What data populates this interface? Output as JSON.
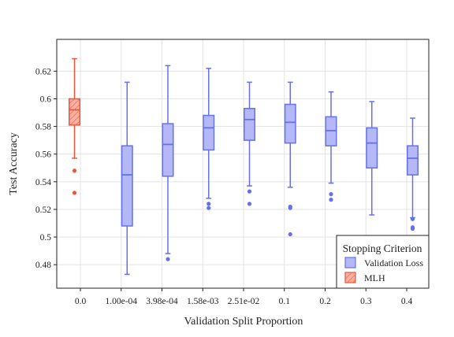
{
  "chart_data": {
    "type": "box",
    "xlabel": "Validation Split Proportion",
    "ylabel": "Test Accuracy",
    "ylim": [
      0.463,
      0.643
    ],
    "yticks": [
      0.48,
      0.5,
      0.52,
      0.54,
      0.56,
      0.58,
      0.6,
      0.62
    ],
    "ytick_labels": [
      "0.48",
      "0.5",
      "0.52",
      "0.54",
      "0.56",
      "0.58",
      "0.6",
      "0.62"
    ],
    "categories": [
      "0.0",
      "1.00e-04",
      "3.98e-04",
      "1.58e-03",
      "2.51e-02",
      "0.1",
      "0.2",
      "0.3",
      "0.4"
    ],
    "grid": true,
    "legend": {
      "title": "Stopping Criterion",
      "placement": "bottom-right",
      "entries": [
        {
          "name": "Validation Loss",
          "color": "#6470f0",
          "fill": "#b5b8f7",
          "hatch": false
        },
        {
          "name": "MLH",
          "color": "#ef553b",
          "fill": "#f8b3a5",
          "hatch": true
        }
      ]
    },
    "series": [
      {
        "name": "Validation Loss",
        "color": "#6470f0",
        "fill": "#b5b8f7",
        "boxes": [
          null,
          {
            "low": 0.473,
            "q1": 0.508,
            "median": 0.545,
            "q3": 0.566,
            "high": 0.612,
            "outliers": []
          },
          {
            "low": 0.488,
            "q1": 0.544,
            "median": 0.567,
            "q3": 0.582,
            "high": 0.624,
            "outliers": [
              0.484
            ]
          },
          {
            "low": 0.528,
            "q1": 0.563,
            "median": 0.579,
            "q3": 0.588,
            "high": 0.622,
            "outliers": [
              0.524,
              0.521
            ]
          },
          {
            "low": 0.537,
            "q1": 0.57,
            "median": 0.585,
            "q3": 0.593,
            "high": 0.612,
            "outliers": [
              0.533,
              0.524
            ]
          },
          {
            "low": 0.536,
            "q1": 0.568,
            "median": 0.583,
            "q3": 0.596,
            "high": 0.612,
            "outliers": [
              0.522,
              0.521,
              0.502
            ]
          },
          {
            "low": 0.539,
            "q1": 0.566,
            "median": 0.577,
            "q3": 0.587,
            "high": 0.605,
            "outliers": [
              0.531,
              0.527
            ]
          },
          {
            "low": 0.516,
            "q1": 0.55,
            "median": 0.568,
            "q3": 0.579,
            "high": 0.598,
            "outliers": []
          },
          {
            "low": 0.514,
            "q1": 0.545,
            "median": 0.557,
            "q3": 0.566,
            "high": 0.586,
            "outliers": [
              0.513,
              0.507,
              0.506
            ]
          }
        ]
      },
      {
        "name": "MLH",
        "color": "#ef553b",
        "fill": "#f8b3a5",
        "boxes": [
          {
            "low": 0.557,
            "q1": 0.581,
            "median": 0.592,
            "q3": 0.6,
            "high": 0.629,
            "outliers": [
              0.548,
              0.532
            ]
          },
          null,
          null,
          null,
          null,
          null,
          null,
          null,
          null
        ]
      }
    ]
  }
}
